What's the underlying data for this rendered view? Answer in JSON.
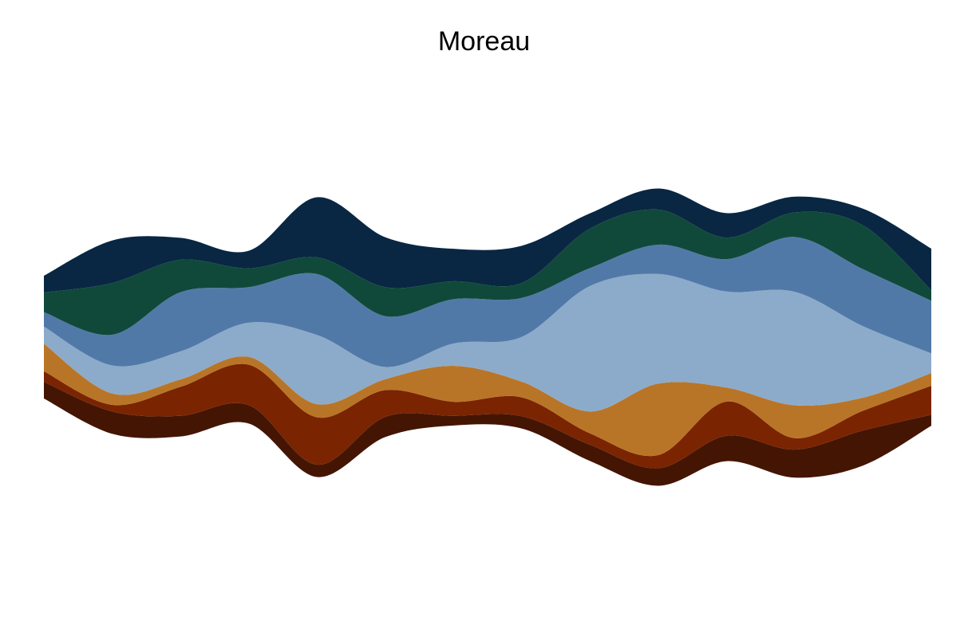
{
  "chart_data": {
    "type": "area",
    "subtype": "streamgraph",
    "title": "Moreau",
    "xlabel": "",
    "ylabel": "",
    "axes_visible": false,
    "grid": false,
    "legend": "none",
    "x": [
      0,
      1,
      2,
      3,
      4,
      5,
      6,
      7,
      8,
      9,
      10,
      11,
      12,
      13
    ],
    "series": [
      {
        "color": "#441503",
        "values": [
          3.8,
          5.1,
          4.7,
          4.2,
          2.8,
          4.6,
          2.2,
          2.8,
          3.7,
          4.0,
          5.8,
          6.4,
          8.0,
          2.5
        ]
      },
      {
        "color": "#7a2402",
        "values": [
          2.4,
          1.5,
          6.6,
          9.2,
          10.8,
          6.1,
          3.2,
          4.3,
          2.6,
          3.0,
          7.8,
          2.6,
          4.5,
          6.6
        ]
      },
      {
        "color": "#b97527",
        "values": [
          6.3,
          2.6,
          1.7,
          1.8,
          3.0,
          2.5,
          8.2,
          3.6,
          5.0,
          16.3,
          3.2,
          7.5,
          3.0,
          2.9
        ]
      },
      {
        "color": "#8cabca",
        "values": [
          3.9,
          6.4,
          6.4,
          7.8,
          15.8,
          2.8,
          5.1,
          10.2,
          28.6,
          25.0,
          21.9,
          25.9,
          16.3,
          4.5
        ]
      },
      {
        "color": "#5179a8",
        "values": [
          3.3,
          7.0,
          13.5,
          8.1,
          13.9,
          11.6,
          10.1,
          8.9,
          4.1,
          6.7,
          7.4,
          12.5,
          13.0,
          12.0
        ]
      },
      {
        "color": "#10493a",
        "values": [
          4.5,
          11.8,
          7.4,
          4.3,
          3.8,
          6.6,
          4.1,
          3.4,
          9.0,
          8.0,
          4.9,
          5.6,
          10.0,
          2.4
        ]
      },
      {
        "color": "#092743",
        "values": [
          3.8,
          9.7,
          5.0,
          4.0,
          13.7,
          11.4,
          7.4,
          8.5,
          3.5,
          4.8,
          5.6,
          3.6,
          3.8,
          9.5
        ]
      }
    ]
  }
}
